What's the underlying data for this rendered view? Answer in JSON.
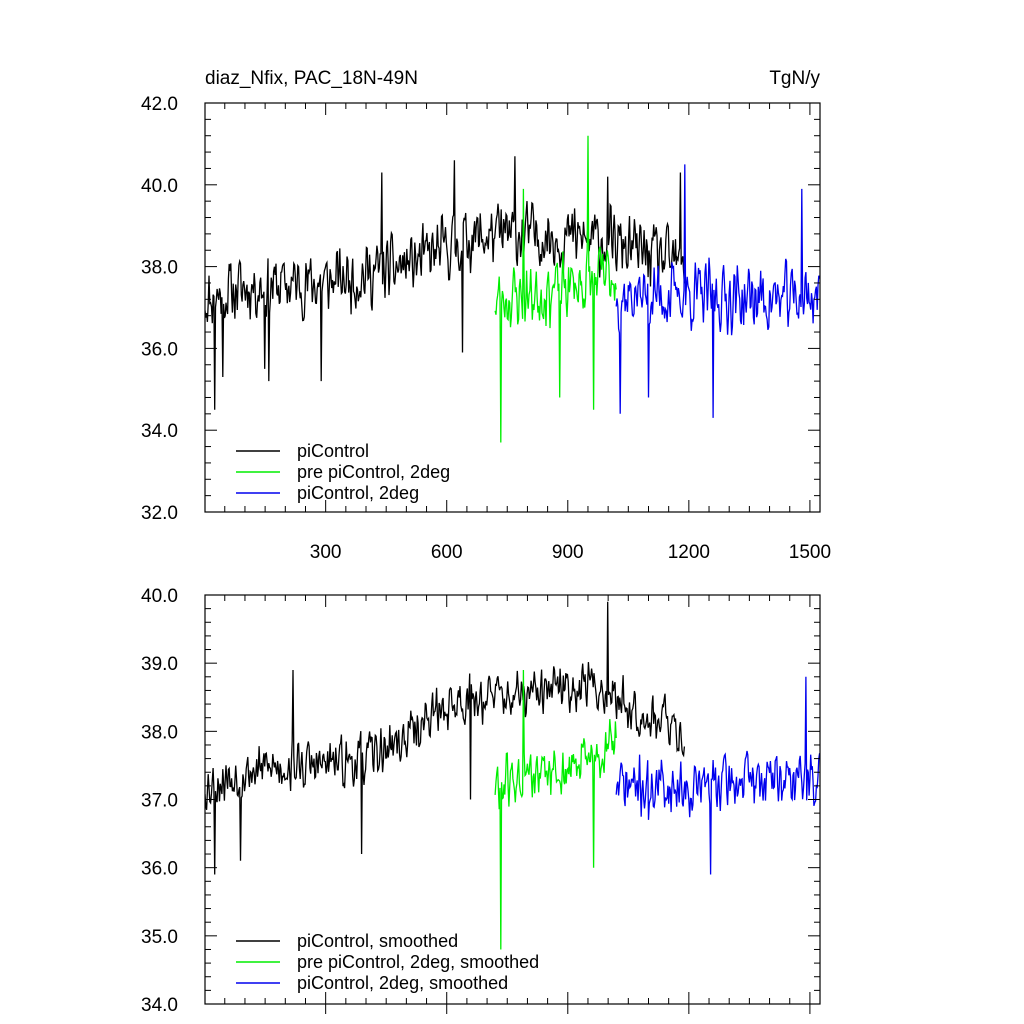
{
  "header": {
    "left_title": "diaz_Nfix, PAC_18N-49N",
    "right_title": "TgN/y"
  },
  "colors": {
    "piControl": "#000000",
    "pre_piControl_2deg": "#00ee00",
    "piControl_2deg": "#0000ee"
  },
  "chart_data": [
    {
      "type": "line",
      "panel": "top",
      "title": "diaz_Nfix, PAC_18N-49N",
      "units": "TgN/y",
      "xlim": [
        1,
        1525
      ],
      "ylim": [
        32,
        42
      ],
      "xticks": [
        300,
        600,
        900,
        1200,
        1500
      ],
      "xtick_labels": [
        "300",
        "600",
        "900",
        "1200",
        "1500"
      ],
      "yticks": [
        32,
        34,
        36,
        38,
        40,
        42
      ],
      "ytick_labels": [
        "32.0",
        "34.0",
        "36.0",
        "38.0",
        "40.0",
        "42.0"
      ],
      "legend_position": "bottom-left",
      "series": [
        {
          "name": "piControl",
          "color": "#000000",
          "x_start": 1,
          "x_end": 1190,
          "base": [
            [
              1,
              37.2
            ],
            [
              100,
              37.5
            ],
            [
              300,
              37.6
            ],
            [
              450,
              37.9
            ],
            [
              550,
              38.2
            ],
            [
              650,
              38.7
            ],
            [
              800,
              38.8
            ],
            [
              1000,
              38.6
            ],
            [
              1100,
              38.3
            ],
            [
              1190,
              38.0
            ]
          ],
          "noise": 0.95,
          "seed": 11,
          "spikes": [
            [
              25,
              34.5
            ],
            [
              45,
              35.3
            ],
            [
              150,
              35.5
            ],
            [
              160,
              35.2
            ],
            [
              290,
              35.2
            ],
            [
              640,
              35.9
            ],
            [
              440,
              40.3
            ],
            [
              620,
              40.6
            ],
            [
              770,
              40.7
            ],
            [
              1000,
              40.2
            ],
            [
              1180,
              40.3
            ]
          ]
        },
        {
          "name": "pre piControl, 2deg",
          "color": "#00ee00",
          "x_start": 720,
          "x_end": 1020,
          "base": [
            [
              720,
              37.2
            ],
            [
              800,
              37.3
            ],
            [
              900,
              37.5
            ],
            [
              1020,
              37.8
            ]
          ],
          "noise": 1.0,
          "seed": 23,
          "spikes": [
            [
              735,
              33.7
            ],
            [
              950,
              41.2
            ],
            [
              790,
              39.9
            ],
            [
              880,
              34.8
            ],
            [
              965,
              34.5
            ]
          ]
        },
        {
          "name": "piControl, 2deg",
          "color": "#0000ee",
          "x_start": 1020,
          "x_end": 1525,
          "base": [
            [
              1020,
              37.3
            ],
            [
              1200,
              37.3
            ],
            [
              1400,
              37.2
            ],
            [
              1525,
              37.3
            ]
          ],
          "noise": 1.0,
          "seed": 37,
          "spikes": [
            [
              1030,
              34.4
            ],
            [
              1260,
              34.3
            ],
            [
              1190,
              40.5
            ],
            [
              1480,
              39.9
            ],
            [
              1100,
              34.8
            ]
          ]
        }
      ],
      "legend": [
        "piControl",
        "pre piControl, 2deg",
        "piControl, 2deg"
      ]
    },
    {
      "type": "line",
      "panel": "bottom",
      "xlim": [
        1,
        1525
      ],
      "ylim": [
        34,
        40
      ],
      "xticks": [
        300,
        600,
        900,
        1200,
        1500
      ],
      "yticks": [
        34,
        35,
        36,
        37,
        38,
        39,
        40
      ],
      "ytick_labels": [
        "34.0",
        "35.0",
        "36.0",
        "37.0",
        "38.0",
        "39.0",
        "40.0"
      ],
      "legend_position": "bottom-left",
      "series": [
        {
          "name": "piControl, smoothed",
          "color": "#000000",
          "x_start": 1,
          "x_end": 1190,
          "base": [
            [
              1,
              37.2
            ],
            [
              100,
              37.4
            ],
            [
              200,
              37.5
            ],
            [
              300,
              37.5
            ],
            [
              400,
              37.6
            ],
            [
              500,
              37.9
            ],
            [
              550,
              38.2
            ],
            [
              650,
              38.5
            ],
            [
              800,
              38.5
            ],
            [
              950,
              38.7
            ],
            [
              1050,
              38.4
            ],
            [
              1150,
              38.1
            ],
            [
              1190,
              37.9
            ]
          ],
          "noise": 0.45,
          "seed": 53,
          "spikes": [
            [
              25,
              35.9
            ],
            [
              90,
              36.1
            ],
            [
              220,
              38.9
            ],
            [
              390,
              36.2
            ],
            [
              660,
              37.0
            ],
            [
              1000,
              39.9
            ]
          ]
        },
        {
          "name": "pre piControl, 2deg, smoothed",
          "color": "#00ee00",
          "x_start": 720,
          "x_end": 1020,
          "base": [
            [
              720,
              37.2
            ],
            [
              800,
              37.3
            ],
            [
              900,
              37.4
            ],
            [
              1020,
              37.8
            ]
          ],
          "noise": 0.5,
          "seed": 61,
          "spikes": [
            [
              735,
              34.8
            ],
            [
              790,
              38.9
            ],
            [
              965,
              36.0
            ]
          ]
        },
        {
          "name": "piControl, 2deg, smoothed",
          "color": "#0000ee",
          "x_start": 1020,
          "x_end": 1525,
          "base": [
            [
              1020,
              37.2
            ],
            [
              1200,
              37.2
            ],
            [
              1400,
              37.3
            ],
            [
              1525,
              37.3
            ]
          ],
          "noise": 0.5,
          "seed": 71,
          "spikes": [
            [
              1255,
              35.9
            ],
            [
              1490,
              38.8
            ],
            [
              1100,
              36.7
            ]
          ]
        }
      ],
      "legend": [
        "piControl, smoothed",
        "pre piControl, 2deg, smoothed",
        "piControl, 2deg, smoothed"
      ]
    }
  ]
}
